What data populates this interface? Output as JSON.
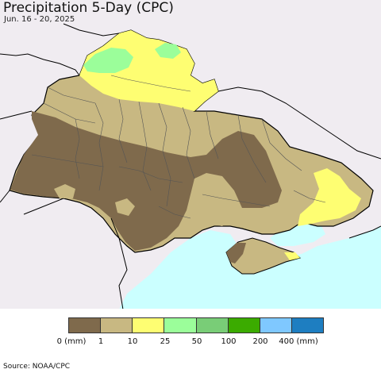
{
  "header": {
    "title": "Precipitation 5-Day (CPC)",
    "subtitle": "Jun. 16 - 20, 2025"
  },
  "map": {
    "sea_color": "#cbffff",
    "land_outside_color": "#f0ecf1",
    "border_color": "#000000",
    "internal_border_color": "#555555"
  },
  "legend": {
    "bins": [
      {
        "label": "0 (mm)",
        "color": "#7f6a4c"
      },
      {
        "label": "1",
        "color": "#c8b882"
      },
      {
        "label": "10",
        "color": "#fefe72"
      },
      {
        "label": "25",
        "color": "#9bfe9a"
      },
      {
        "label": "50",
        "color": "#79cd77"
      },
      {
        "label": "100",
        "color": "#3bab00"
      },
      {
        "label": "200",
        "color": "#7fc8ff"
      },
      {
        "label": "400 (mm)",
        "color": "#1e7ec1"
      }
    ]
  },
  "footer": {
    "source": "Source: NOAA/CPC"
  }
}
